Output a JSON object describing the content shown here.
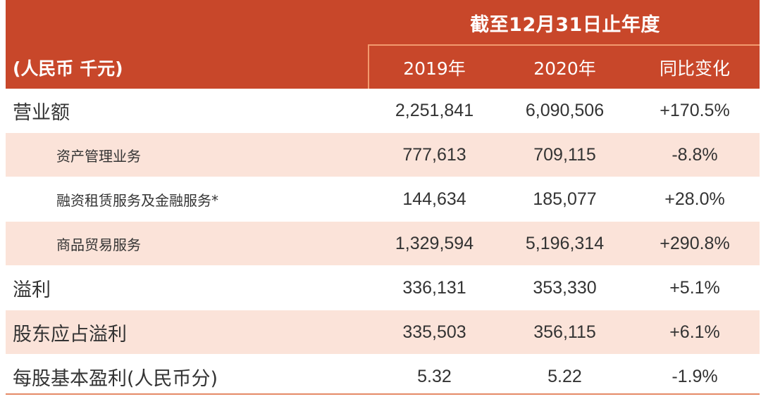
{
  "header": {
    "group_title": "截至12月31日止年度",
    "unit": "(人民币 千元)",
    "columns": [
      "2019年",
      "2020年",
      "同比变化"
    ]
  },
  "rows": [
    {
      "label": "营业额",
      "v2019": "2,251,841",
      "v2020": "6,090,506",
      "change": "+170.5%"
    },
    {
      "label": "资产管理业务",
      "v2019": "777,613",
      "v2020": "709,115",
      "change": "-8.8%"
    },
    {
      "label": "融资租赁服务及金融服务*",
      "v2019": "144,634",
      "v2020": "185,077",
      "change": "+28.0%"
    },
    {
      "label": "商品贸易服务",
      "v2019": "1,329,594",
      "v2020": "5,196,314",
      "change": "+290.8%"
    },
    {
      "label": "溢利",
      "v2019": "336,131",
      "v2020": "353,330",
      "change": "+5.1%"
    },
    {
      "label": "股东应占溢利",
      "v2019": "335,503",
      "v2020": "356,115",
      "change": "+6.1%"
    },
    {
      "label": "每股基本盈利(人民币分)",
      "v2019": "5.32",
      "v2020": "5.22",
      "change": "-1.9%"
    }
  ],
  "colors": {
    "header_bg": "#c8472a",
    "header_divider": "#f29a6e",
    "row_shade": "#fbe3d9",
    "bottom_rule": "#e58a66"
  }
}
